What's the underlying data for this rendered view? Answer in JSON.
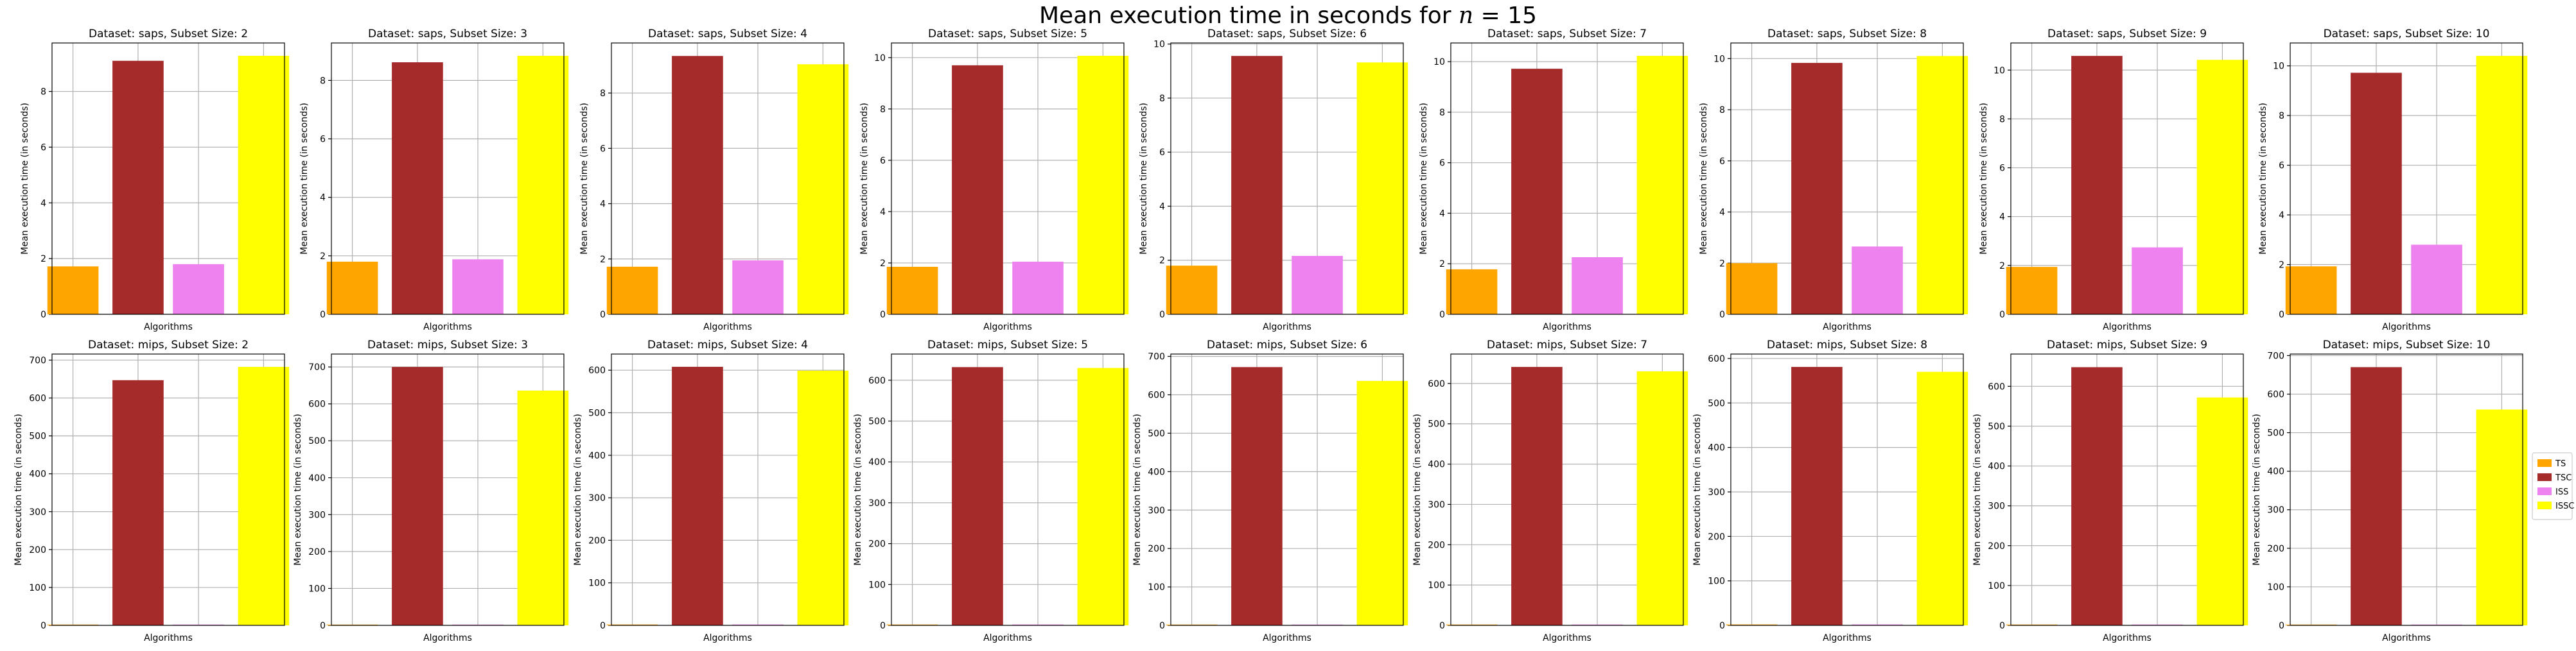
{
  "figure": {
    "title_prefix": "Mean execution time in seconds for ",
    "title_math_var": "n",
    "title_math_rest": " = 15"
  },
  "colors": {
    "TS": "#FFA500",
    "TSC": "#A52A2A",
    "ISS": "#EE82EE",
    "ISSC": "#FFFF00",
    "grid": "#b0b0b0"
  },
  "legend": {
    "placement": "right",
    "items": [
      "TS",
      "TSC",
      "ISS",
      "ISSC"
    ]
  },
  "chart_data": [
    {
      "type": "bar",
      "title": "Dataset: saps, Subset Size: 2",
      "xlabel": "Algorithms",
      "ylabel": "Mean execution time (in seconds)",
      "categories": [
        "TS",
        "TSC",
        "ISS",
        "ISSC"
      ],
      "values": [
        1.72,
        9.1,
        1.8,
        9.28
      ],
      "ylim": [
        0,
        9.74
      ],
      "yticks": [
        0,
        2,
        4,
        6,
        8
      ],
      "grid": true
    },
    {
      "type": "bar",
      "title": "Dataset: saps, Subset Size: 3",
      "xlabel": "Algorithms",
      "ylabel": "Mean execution time (in seconds)",
      "categories": [
        "TS",
        "TSC",
        "ISS",
        "ISSC"
      ],
      "values": [
        1.8,
        8.62,
        1.88,
        8.84
      ],
      "ylim": [
        0,
        9.28
      ],
      "yticks": [
        0,
        2,
        4,
        6,
        8
      ],
      "grid": true
    },
    {
      "type": "bar",
      "title": "Dataset: saps, Subset Size: 4",
      "xlabel": "Algorithms",
      "ylabel": "Mean execution time (in seconds)",
      "categories": [
        "TS",
        "TSC",
        "ISS",
        "ISSC"
      ],
      "values": [
        1.72,
        9.34,
        1.95,
        9.04
      ],
      "ylim": [
        0,
        9.81
      ],
      "yticks": [
        0,
        2,
        4,
        6,
        8
      ],
      "grid": true
    },
    {
      "type": "bar",
      "title": "Dataset: saps, Subset Size: 5",
      "xlabel": "Algorithms",
      "ylabel": "Mean execution time (in seconds)",
      "categories": [
        "TS",
        "TSC",
        "ISS",
        "ISSC"
      ],
      "values": [
        1.85,
        9.7,
        2.05,
        10.07
      ],
      "ylim": [
        0,
        10.57
      ],
      "yticks": [
        0,
        2,
        4,
        6,
        8,
        10
      ],
      "grid": true
    },
    {
      "type": "bar",
      "title": "Dataset: saps, Subset Size: 6",
      "xlabel": "Algorithms",
      "ylabel": "Mean execution time (in seconds)",
      "categories": [
        "TS",
        "TSC",
        "ISS",
        "ISSC"
      ],
      "values": [
        1.8,
        9.56,
        2.16,
        9.32
      ],
      "ylim": [
        0,
        10.04
      ],
      "yticks": [
        0,
        2,
        4,
        6,
        8,
        10
      ],
      "grid": true
    },
    {
      "type": "bar",
      "title": "Dataset: saps, Subset Size: 7",
      "xlabel": "Algorithms",
      "ylabel": "Mean execution time (in seconds)",
      "categories": [
        "TS",
        "TSC",
        "ISS",
        "ISSC"
      ],
      "values": [
        1.78,
        9.72,
        2.26,
        10.23
      ],
      "ylim": [
        0,
        10.74
      ],
      "yticks": [
        0,
        2,
        4,
        6,
        8,
        10
      ],
      "grid": true
    },
    {
      "type": "bar",
      "title": "Dataset: saps, Subset Size: 8",
      "xlabel": "Algorithms",
      "ylabel": "Mean execution time (in seconds)",
      "categories": [
        "TS",
        "TSC",
        "ISS",
        "ISSC"
      ],
      "values": [
        2.0,
        9.83,
        2.65,
        10.1
      ],
      "ylim": [
        0,
        10.61
      ],
      "yticks": [
        0,
        2,
        4,
        6,
        8,
        10
      ],
      "grid": true
    },
    {
      "type": "bar",
      "title": "Dataset: saps, Subset Size: 9",
      "xlabel": "Algorithms",
      "ylabel": "Mean execution time (in seconds)",
      "categories": [
        "TS",
        "TSC",
        "ISS",
        "ISSC"
      ],
      "values": [
        1.94,
        10.58,
        2.74,
        10.42
      ],
      "ylim": [
        0,
        11.11
      ],
      "yticks": [
        0,
        2,
        4,
        6,
        8,
        10
      ],
      "grid": true
    },
    {
      "type": "bar",
      "title": "Dataset: saps, Subset Size: 10",
      "xlabel": "Algorithms",
      "ylabel": "Mean execution time (in seconds)",
      "categories": [
        "TS",
        "TSC",
        "ISS",
        "ISSC"
      ],
      "values": [
        1.93,
        9.72,
        2.8,
        10.4
      ],
      "ylim": [
        0,
        10.92
      ],
      "yticks": [
        0,
        2,
        4,
        6,
        8,
        10
      ],
      "grid": true
    },
    {
      "type": "bar",
      "title": "Dataset: mips, Subset Size: 2",
      "xlabel": "Algorithms",
      "ylabel": "Mean execution time (in seconds)",
      "categories": [
        "TS",
        "TSC",
        "ISS",
        "ISSC"
      ],
      "values": [
        2,
        647,
        2,
        682
      ],
      "ylim": [
        0,
        716
      ],
      "yticks": [
        0,
        100,
        200,
        300,
        400,
        500,
        600,
        700
      ],
      "grid": true
    },
    {
      "type": "bar",
      "title": "Dataset: mips, Subset Size: 3",
      "xlabel": "Algorithms",
      "ylabel": "Mean execution time (in seconds)",
      "categories": [
        "TS",
        "TSC",
        "ISS",
        "ISSC"
      ],
      "values": [
        2,
        700,
        2,
        636
      ],
      "ylim": [
        0,
        735
      ],
      "yticks": [
        0,
        100,
        200,
        300,
        400,
        500,
        600,
        700
      ],
      "grid": true
    },
    {
      "type": "bar",
      "title": "Dataset: mips, Subset Size: 4",
      "xlabel": "Algorithms",
      "ylabel": "Mean execution time (in seconds)",
      "categories": [
        "TS",
        "TSC",
        "ISS",
        "ISSC"
      ],
      "values": [
        2,
        608,
        2,
        599
      ],
      "ylim": [
        0,
        638
      ],
      "yticks": [
        0,
        100,
        200,
        300,
        400,
        500,
        600
      ],
      "grid": true
    },
    {
      "type": "bar",
      "title": "Dataset: mips, Subset Size: 5",
      "xlabel": "Algorithms",
      "ylabel": "Mean execution time (in seconds)",
      "categories": [
        "TS",
        "TSC",
        "ISS",
        "ISSC"
      ],
      "values": [
        2,
        632,
        2,
        630
      ],
      "ylim": [
        0,
        664
      ],
      "yticks": [
        0,
        100,
        200,
        300,
        400,
        500,
        600
      ],
      "grid": true
    },
    {
      "type": "bar",
      "title": "Dataset: mips, Subset Size: 6",
      "xlabel": "Algorithms",
      "ylabel": "Mean execution time (in seconds)",
      "categories": [
        "TS",
        "TSC",
        "ISS",
        "ISSC"
      ],
      "values": [
        2,
        672,
        2,
        636
      ],
      "ylim": [
        0,
        706
      ],
      "yticks": [
        0,
        100,
        200,
        300,
        400,
        500,
        600,
        700
      ],
      "grid": true
    },
    {
      "type": "bar",
      "title": "Dataset: mips, Subset Size: 7",
      "xlabel": "Algorithms",
      "ylabel": "Mean execution time (in seconds)",
      "categories": [
        "TS",
        "TSC",
        "ISS",
        "ISSC"
      ],
      "values": [
        2,
        641,
        2,
        630
      ],
      "ylim": [
        0,
        673
      ],
      "yticks": [
        0,
        100,
        200,
        300,
        400,
        500,
        600
      ],
      "grid": true
    },
    {
      "type": "bar",
      "title": "Dataset: mips, Subset Size: 8",
      "xlabel": "Algorithms",
      "ylabel": "Mean execution time (in seconds)",
      "categories": [
        "TS",
        "TSC",
        "ISS",
        "ISSC"
      ],
      "values": [
        2,
        581,
        2,
        570
      ],
      "ylim": [
        0,
        610
      ],
      "yticks": [
        0,
        100,
        200,
        300,
        400,
        500,
        600
      ],
      "grid": true
    },
    {
      "type": "bar",
      "title": "Dataset: mips, Subset Size: 9",
      "xlabel": "Algorithms",
      "ylabel": "Mean execution time (in seconds)",
      "categories": [
        "TS",
        "TSC",
        "ISS",
        "ISSC"
      ],
      "values": [
        2,
        648,
        2,
        572
      ],
      "ylim": [
        0,
        681
      ],
      "yticks": [
        0,
        100,
        200,
        300,
        400,
        500,
        600
      ],
      "grid": true
    },
    {
      "type": "bar",
      "title": "Dataset: mips, Subset Size: 10",
      "xlabel": "Algorithms",
      "ylabel": "Mean execution time (in seconds)",
      "categories": [
        "TS",
        "TSC",
        "ISS",
        "ISSC"
      ],
      "values": [
        2,
        670,
        2,
        560
      ],
      "ylim": [
        0,
        704
      ],
      "yticks": [
        0,
        100,
        200,
        300,
        400,
        500,
        600,
        700
      ],
      "grid": true
    }
  ]
}
